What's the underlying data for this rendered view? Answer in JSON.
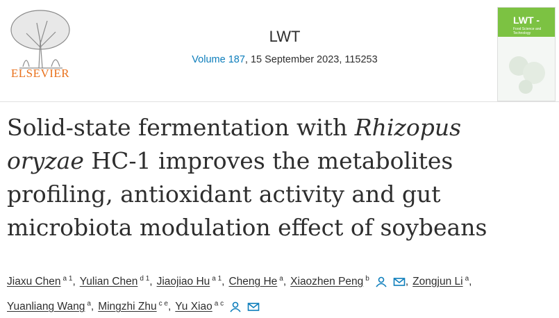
{
  "publisher": {
    "name": "ELSEVIER"
  },
  "journal": {
    "name": "LWT",
    "volume": "Volume 187",
    "issue_info": ", 15 September 2023, 115253"
  },
  "cover": {
    "title": "LWT -",
    "subtitle": "Food Science and Technology"
  },
  "title": {
    "lines": [
      [
        {
          "text": "Solid-state fermentation with ",
          "italic": false
        },
        {
          "text": "Rhizopus",
          "italic": true
        }
      ],
      [
        {
          "text": "oryzae",
          "italic": true
        },
        {
          "text": " HC-1 improves the metabolites",
          "italic": false
        }
      ],
      [
        {
          "text": "profiling, antioxidant activity and gut",
          "italic": false
        }
      ],
      [
        {
          "text": "microbiota modulation effect of soybeans",
          "italic": false
        }
      ]
    ]
  },
  "authors": {
    "delimiter": ",",
    "rows": [
      [
        {
          "name": "Jiaxu Chen",
          "sup": "a 1",
          "contact": false
        },
        {
          "name": "Yulian Chen",
          "sup": "d 1",
          "contact": false
        },
        {
          "name": "Jiaojiao Hu",
          "sup": "a 1",
          "contact": false
        },
        {
          "name": "Cheng He",
          "sup": "a",
          "contact": false
        },
        {
          "name": "Xiaozhen Peng",
          "sup": "b",
          "contact": true
        },
        {
          "name": "Zongjun Li",
          "sup": "a",
          "contact": false
        }
      ],
      [
        {
          "name": "Yuanliang Wang",
          "sup": "a",
          "contact": false
        },
        {
          "name": "Mingzhi Zhu",
          "sup": "c e",
          "contact": false
        },
        {
          "name": "Yu Xiao",
          "sup": "a c",
          "contact": true
        }
      ]
    ]
  }
}
